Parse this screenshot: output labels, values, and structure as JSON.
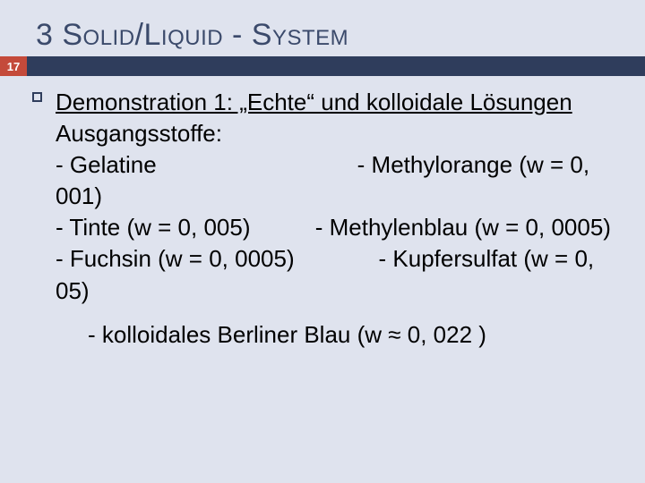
{
  "colors": {
    "background": "#dfe3ee",
    "title_color": "#3b4a6b",
    "badge_bg": "#c44a3a",
    "badge_text": "#ffffff",
    "bar_bg": "#2f3d5c",
    "body_text": "#000000",
    "bullet_border": "#2f3d5c"
  },
  "typography": {
    "title_fontsize": 34,
    "body_fontsize": 26,
    "badge_fontsize": 13,
    "font_family": "Arial"
  },
  "title": "3 Solid/Liquid - System",
  "page_number": "17",
  "heading_line": "Demonstration 1: „Echte“ und kolloidale Lösungen",
  "sub_label": "Ausgangsstoffe:",
  "line_block": "- Gelatine                               - Methylorange (w = 0, 001)\n- Tinte (w = 0, 005)          - Methylenblau (w = 0, 0005)\n- Fuchsin (w = 0, 0005)             - Kupfersulfat (w = 0, 05)",
  "footer_line": "- kolloidales Berliner Blau (w ≈ 0, 022 )",
  "substances": [
    {
      "name": "Gelatine",
      "w": null
    },
    {
      "name": "Methylorange",
      "w": "0, 001"
    },
    {
      "name": "Tinte",
      "w": "0, 005"
    },
    {
      "name": "Methylenblau",
      "w": "0, 0005"
    },
    {
      "name": "Fuchsin",
      "w": "0, 0005"
    },
    {
      "name": "Kupfersulfat",
      "w": "0, 05"
    },
    {
      "name": "kolloidales Berliner Blau",
      "w": "≈ 0, 022"
    }
  ]
}
